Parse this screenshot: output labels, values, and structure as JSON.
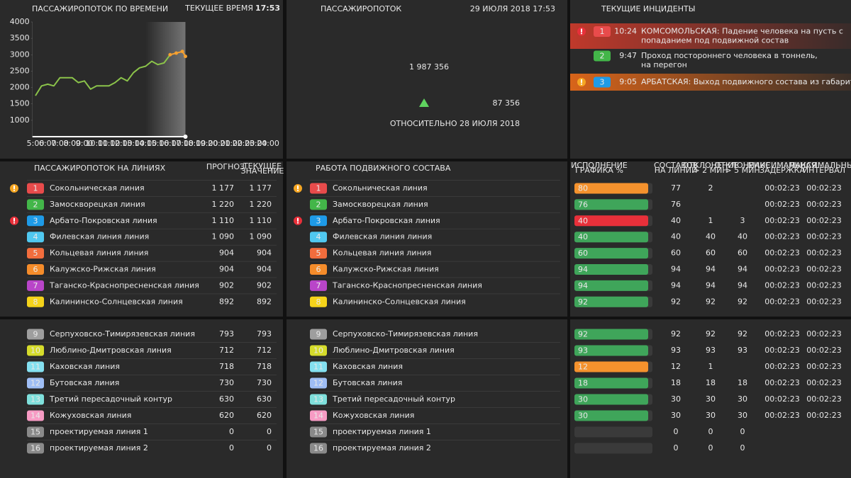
{
  "chart_data": {
    "type": "line",
    "title": "ПАССАЖИРОПОТОК ПО ВРЕМЕНИ",
    "x": [
      5,
      5.5,
      6,
      6.5,
      7,
      7.5,
      8,
      8.5,
      9,
      9.5,
      10,
      10.5,
      11,
      11.5,
      12,
      12.5,
      13,
      13.5,
      14,
      14.5,
      15,
      15.5,
      16,
      16.5,
      17,
      17.25
    ],
    "series": [
      {
        "color": "#8bc34a",
        "values": [
          1750,
          2050,
          2100,
          2050,
          2300,
          2300,
          2300,
          2150,
          2200,
          1950,
          2050,
          2050,
          2050,
          2150,
          2300,
          2200,
          2450,
          2600,
          2650,
          2800,
          2700,
          2750,
          3000,
          null,
          null,
          null
        ]
      },
      {
        "color": "#f5a030",
        "values": [
          null,
          null,
          null,
          null,
          null,
          null,
          null,
          null,
          null,
          null,
          null,
          null,
          null,
          null,
          null,
          null,
          null,
          null,
          null,
          null,
          null,
          null,
          3000,
          3050,
          3100,
          2950
        ]
      }
    ],
    "xlim": [
      4.75,
      24.25
    ],
    "ylim": [
      500,
      4000
    ],
    "yticks": [
      1000,
      1500,
      2000,
      2500,
      3000,
      3500,
      4000
    ],
    "xticks": [
      {
        "value": 5,
        "label": "5:00"
      },
      {
        "value": 6,
        "label": "6:00"
      },
      {
        "value": 7,
        "label": "7:00"
      },
      {
        "value": 8,
        "label": "8:00"
      },
      {
        "value": 9,
        "label": "9:00"
      },
      {
        "value": 10,
        "label": "10:00"
      },
      {
        "value": 11,
        "label": "11:00"
      },
      {
        "value": 12,
        "label": "12:00"
      },
      {
        "value": 13,
        "label": "13:00"
      },
      {
        "value": 14,
        "label": "14:00"
      },
      {
        "value": 15,
        "label": "15:00"
      },
      {
        "value": 16,
        "label": "16:00"
      },
      {
        "value": 17,
        "label": "17:00"
      },
      {
        "value": 18,
        "label": "18:00"
      },
      {
        "value": 19,
        "label": "19:00"
      },
      {
        "value": 20,
        "label": "20:00"
      },
      {
        "value": 21,
        "label": "21:00"
      },
      {
        "value": 22,
        "label": "22:00"
      },
      {
        "value": 23,
        "label": "23:00"
      },
      {
        "value": 24,
        "label": "24:00"
      }
    ],
    "grid": false
  },
  "clock": {
    "label": "ТЕКУЩЕЕ ВРЕМЯ",
    "time": "17:53"
  },
  "total": {
    "title": "ПАССАЖИРОПОТОК",
    "date": "29 ИЮЛЯ 2018 17:53",
    "value": "1 987 356",
    "delta": "87 356",
    "delta_color": "#5fd35f",
    "caption": "ОТНОСИТЕЛЬНО 28 ИЮЛЯ 2018"
  },
  "incidents": {
    "title": "ТЕКУЩИЕ ИНЦИДЕНТЫ",
    "items": [
      {
        "line": "1",
        "color": "#e84b4b",
        "time": "10:24",
        "text": [
          "КОМСОМОЛЬСКАЯ: Падение человека на пусть с",
          "попаданием под подвижной состав"
        ],
        "alert": "#e8303a",
        "background": "#c0392b"
      },
      {
        "line": "2",
        "color": "#43b649",
        "time": "9:47",
        "text": [
          "Проход постороннего человека в тоннель,",
          "на перегон"
        ]
      },
      {
        "line": "3",
        "color": "#1e9be8",
        "time": "9:05",
        "text": [
          "АРБАТСКАЯ: Выход подвижного состава из габарита"
        ],
        "alert": "#f5a623",
        "background": "#d8641a"
      }
    ]
  },
  "flow_table": {
    "title": "ПАССАЖИРОПОТОК НА ЛИНИЯХ",
    "forecast_header": "ПРОГНОЗ",
    "current_header": [
      "ТЕКУЩЕЕ",
      "ЗНАЧЕНИЕ"
    ]
  },
  "stock_table": {
    "title": "РАБОТА ПОДВИЖНОГО СОСТАВА"
  },
  "stats_table": {
    "headers": [
      [
        "ИСПОЛНЕНИЕ",
        "ГРАФИКА %"
      ],
      [
        "СОСТАВОВ",
        "НА ЛИНИИ"
      ],
      [
        "ОТКЛОНЕНИЕ",
        "> 2 МИН"
      ],
      [
        "ОТКЛОНЕНИЕ",
        "> 5 МИН"
      ],
      [
        "МАКСИМАЛЬНАЯ",
        "ЗАДЕРЖКА"
      ],
      [
        "МАКСИМАЛЬНЫЙ",
        "ИНТЕРВАЛ"
      ]
    ]
  },
  "lines": [
    {
      "num": "1",
      "name": "Сокольническая линия",
      "color": "#e84b4b",
      "forecast": "1 177",
      "current": "1 177",
      "alert": "#f5a623",
      "schedule": 80,
      "bar_color": "#f5922d",
      "trains": 77,
      "dev2": 2,
      "dev2_color": "#f5a623",
      "dev5": null,
      "delay": "00:02:23",
      "interval": "00:02:23",
      "time_color": "#f5a623"
    },
    {
      "num": "2",
      "name": "Замоскворецкая линия",
      "color": "#43b649",
      "forecast": "1 220",
      "current": "1 220",
      "schedule": 76,
      "bar_color": "#3fa55a",
      "trains": 76,
      "dev2": null,
      "dev5": null,
      "delay": "00:02:23",
      "interval": "00:02:23"
    },
    {
      "num": "3",
      "name": "Арбато-Покровская линия",
      "color": "#1e9be8",
      "forecast": "1 110",
      "current": "1 110",
      "alert": "#e8303a",
      "schedule": 40,
      "bar_color": "#e8303a",
      "trains": 40,
      "dev2": 1,
      "dev2_color": "#f5a623",
      "dev5": 3,
      "dev5_color": "#ff3030",
      "delay": "00:02:23",
      "interval": "00:02:23",
      "time_color": "#ff3030"
    },
    {
      "num": "4",
      "name": "Филевская линия линия",
      "color": "#50c8f0",
      "forecast": "1 090",
      "current": "1 090",
      "schedule": 40,
      "bar_color": "#3fa55a",
      "trains": 40,
      "dev2": 40,
      "dev5": 40,
      "delay": "00:02:23",
      "interval": "00:02:23"
    },
    {
      "num": "5",
      "name": "Кольцевая линия линия",
      "color": "#f26d3d",
      "forecast": "904",
      "current": "904",
      "schedule": 60,
      "bar_color": "#3fa55a",
      "trains": 60,
      "dev2": 60,
      "dev5": 60,
      "delay": "00:02:23",
      "interval": "00:02:23"
    },
    {
      "num": "6",
      "name": "Калужско-Рижская линия",
      "color": "#f58c2a",
      "forecast": "904",
      "current": "904",
      "schedule": 94,
      "bar_color": "#3fa55a",
      "trains": 94,
      "dev2": 94,
      "dev5": 94,
      "delay": "00:02:23",
      "interval": "00:02:23"
    },
    {
      "num": "7",
      "name": "Таганско-Краснопресненская линия",
      "color": "#b945c9",
      "forecast": "902",
      "current": "902",
      "schedule": 94,
      "bar_color": "#3fa55a",
      "trains": 94,
      "dev2": 94,
      "dev5": 94,
      "delay": "00:02:23",
      "interval": "00:02:23"
    },
    {
      "num": "8",
      "name": "Калининско-Солнцевская линия",
      "color": "#f5d31a",
      "forecast": "892",
      "current": "892",
      "schedule": 92,
      "bar_color": "#3fa55a",
      "trains": 92,
      "dev2": 92,
      "dev5": 92,
      "delay": "00:02:23",
      "interval": "00:02:23"
    },
    {
      "num": "9",
      "name": "Серпуховско-Тимирязевская линия",
      "color": "#9e9e9e",
      "forecast": "793",
      "current": "793",
      "schedule": 92,
      "bar_color": "#3fa55a",
      "trains": 92,
      "dev2": 92,
      "dev5": 92,
      "delay": "00:02:23",
      "interval": "00:02:23"
    },
    {
      "num": "10",
      "name": "Люблино-Дмитровская линия",
      "color": "#d6dc2b",
      "forecast": "712",
      "current": "712",
      "schedule": 93,
      "bar_color": "#3fa55a",
      "trains": 93,
      "dev2": 93,
      "dev5": 93,
      "delay": "00:02:23",
      "interval": "00:02:23"
    },
    {
      "num": "11",
      "name": "Каховская линия",
      "color": "#84e0f0",
      "forecast": "718",
      "current": "718",
      "schedule": 12,
      "bar_color": "#f5922d",
      "trains": 12,
      "dev2": 1,
      "dev2_color": "#f5a623",
      "dev5": null,
      "delay": "00:02:23",
      "interval": "00:02:23",
      "time_color": "#f5a623"
    },
    {
      "num": "12",
      "name": "Бутовская линия",
      "color": "#9fbef5",
      "forecast": "730",
      "current": "730",
      "schedule": 18,
      "bar_color": "#3fa55a",
      "trains": 18,
      "dev2": 18,
      "dev5": 18,
      "delay": "00:02:23",
      "interval": "00:02:23"
    },
    {
      "num": "13",
      "name": "Третий пересадочный контур",
      "color": "#7fe0dc",
      "forecast": "630",
      "current": "630",
      "schedule": 30,
      "bar_color": "#3fa55a",
      "trains": 30,
      "dev2": 30,
      "dev5": 30,
      "delay": "00:02:23",
      "interval": "00:02:23"
    },
    {
      "num": "14",
      "name": "Кожуховская линия",
      "color": "#f79bc4",
      "forecast": "620",
      "current": "620",
      "schedule": 30,
      "bar_color": "#3fa55a",
      "trains": 30,
      "dev2": 30,
      "dev5": 30,
      "delay": "00:02:23",
      "interval": "00:02:23"
    },
    {
      "num": "15",
      "name": "проектируемая линия 1",
      "color": "#8a8a8a",
      "forecast": "0",
      "current": "0",
      "schedule": null,
      "trains": 0,
      "dev2": 0,
      "dev5": 0,
      "delay": null,
      "interval": null
    },
    {
      "num": "16",
      "name": "проектируемая линия 2",
      "color": "#8a8a8a",
      "forecast": "0",
      "current": "0",
      "schedule": null,
      "trains": 0,
      "dev2": 0,
      "dev5": 0,
      "delay": null,
      "interval": null
    }
  ]
}
